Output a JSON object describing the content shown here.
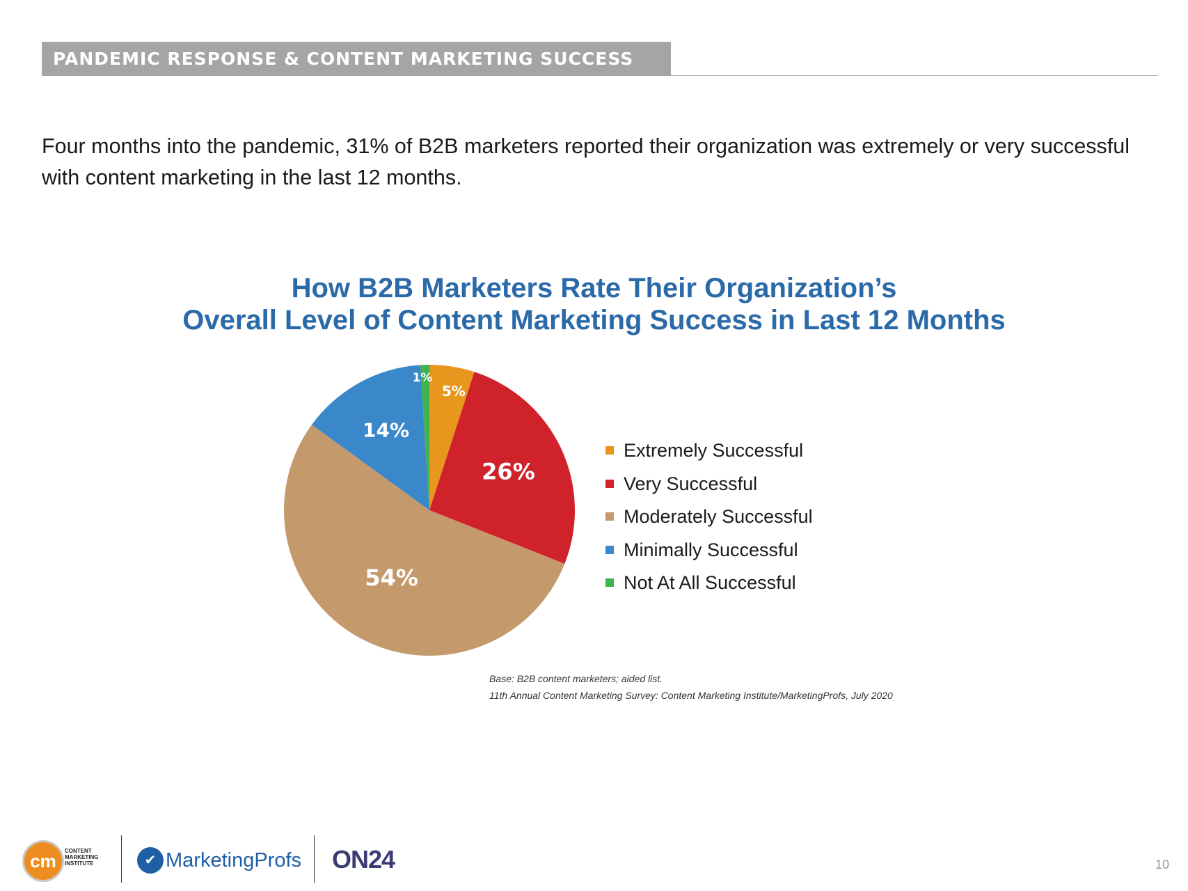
{
  "header": {
    "title": "PANDEMIC RESPONSE & CONTENT MARKETING SUCCESS"
  },
  "intro": {
    "line1": "Four months into the pandemic, 31% of B2B marketers reported their organization was extremely or very successful",
    "line2": "with content marketing in the last 12 months."
  },
  "chart_data": {
    "type": "pie",
    "title_line1": "How B2B Marketers Rate Their Organization’s",
    "title_line2": "Overall Level of Content Marketing Success in Last 12 Months",
    "categories": [
      "Extremely Successful",
      "Very Successful",
      "Moderately Successful",
      "Minimally Successful",
      "Not At All Successful"
    ],
    "values": [
      5,
      26,
      54,
      14,
      1
    ],
    "labels": [
      "5%",
      "26%",
      "54%",
      "14%",
      "1%"
    ],
    "colors": [
      "#e8961e",
      "#d0222b",
      "#c49a6c",
      "#3a88c9",
      "#3fb34f"
    ],
    "legend_position": "right"
  },
  "notes": {
    "base": "Base: B2B content marketers; aided list.",
    "source": "11th Annual Content Marketing Survey: Content Marketing Institute/MarketingProfs, July 2020"
  },
  "footer": {
    "cmi_mark": "cm",
    "cmi_line1": "CONTENT",
    "cmi_line2": "MARKETING",
    "cmi_line3": "INSTITUTE",
    "marketingprofs": "MarketingProfs",
    "on24": "ON24",
    "page_number": "10"
  }
}
